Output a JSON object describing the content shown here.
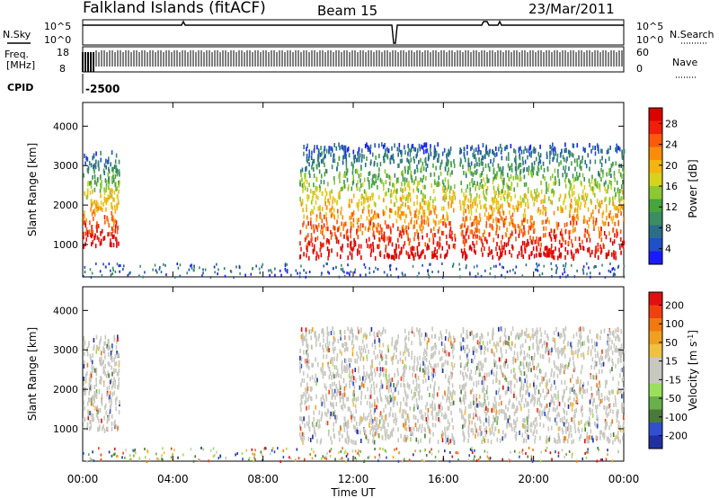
{
  "header": {
    "station": "Falkland Islands (fitACF)",
    "beam": "Beam 15",
    "date": "23/Mar/2011"
  },
  "params_panel": {
    "nsky_label": "N.Sky",
    "nsky_top": "10^5",
    "nsky_bottom": "10^0",
    "nsearch_label": "N.Search",
    "nsearch_top": "10^5",
    "nsearch_bottom": "10^0",
    "freq_label_1": "Freq.",
    "freq_label_2": "[MHz]",
    "freq_top": "18",
    "freq_bottom": "8",
    "nave_label": "Nave",
    "nave_top": "60",
    "nave_bottom": "0",
    "cpid_label": "CPID",
    "cpid_value": "-2500"
  },
  "x_axis": {
    "title": "Time UT",
    "ticks": [
      "00:00",
      "04:00",
      "08:00",
      "12:00",
      "16:00",
      "20:00",
      "00:00"
    ]
  },
  "chart_data": [
    {
      "type": "heatmap",
      "title": "",
      "xlabel": "Time UT",
      "ylabel": "Slant Range [km]",
      "x_range_hours": [
        0,
        24
      ],
      "ylim": [
        180,
        4600
      ],
      "y_ticks": [
        "1000",
        "2000",
        "3000",
        "4000"
      ],
      "colorbar": {
        "label": "Power [dB]",
        "ticks": [
          "4",
          "8",
          "12",
          "16",
          "20",
          "24",
          "28"
        ],
        "colors": [
          "#1a1aff",
          "#1e50c8",
          "#2a6e8c",
          "#3c8c64",
          "#46a53c",
          "#8cc832",
          "#d7d21e",
          "#f5b40f",
          "#fa8c0a",
          "#fa5a0a",
          "#f01e0a",
          "#dc0000"
        ]
      },
      "scatter_regions": [
        {
          "hours": [
            0.0,
            1.6
          ],
          "range_km": [
            1000,
            3400
          ]
        },
        {
          "hours": [
            9.6,
            16.5
          ],
          "range_km": [
            700,
            3600
          ]
        },
        {
          "hours": [
            16.7,
            24.0
          ],
          "range_km": [
            700,
            3600
          ]
        }
      ]
    },
    {
      "type": "heatmap",
      "title": "",
      "xlabel": "Time UT",
      "ylabel": "Slant Range [km]",
      "x_range_hours": [
        0,
        24
      ],
      "ylim": [
        180,
        4600
      ],
      "y_ticks": [
        "1000",
        "2000",
        "3000",
        "4000"
      ],
      "colorbar": {
        "label": "Velocity [m s^-1]",
        "ticks": [
          "200",
          "100",
          "50",
          "15",
          "-15",
          "-50",
          "-100",
          "-200"
        ],
        "colors": [
          "#2030a0",
          "#3050d0",
          "#4a7a3a",
          "#6ab04a",
          "#9ae05a",
          "#c8c8c0",
          "#c8c8c0",
          "#f0c040",
          "#f0a020",
          "#f07a10",
          "#f04010",
          "#e01010"
        ]
      },
      "scatter_regions": [
        {
          "hours": [
            0.0,
            1.6
          ],
          "range_km": [
            1000,
            3400
          ]
        },
        {
          "hours": [
            9.6,
            16.5
          ],
          "range_km": [
            700,
            3600
          ]
        },
        {
          "hours": [
            16.7,
            24.0
          ],
          "range_km": [
            700,
            3600
          ]
        }
      ]
    }
  ]
}
